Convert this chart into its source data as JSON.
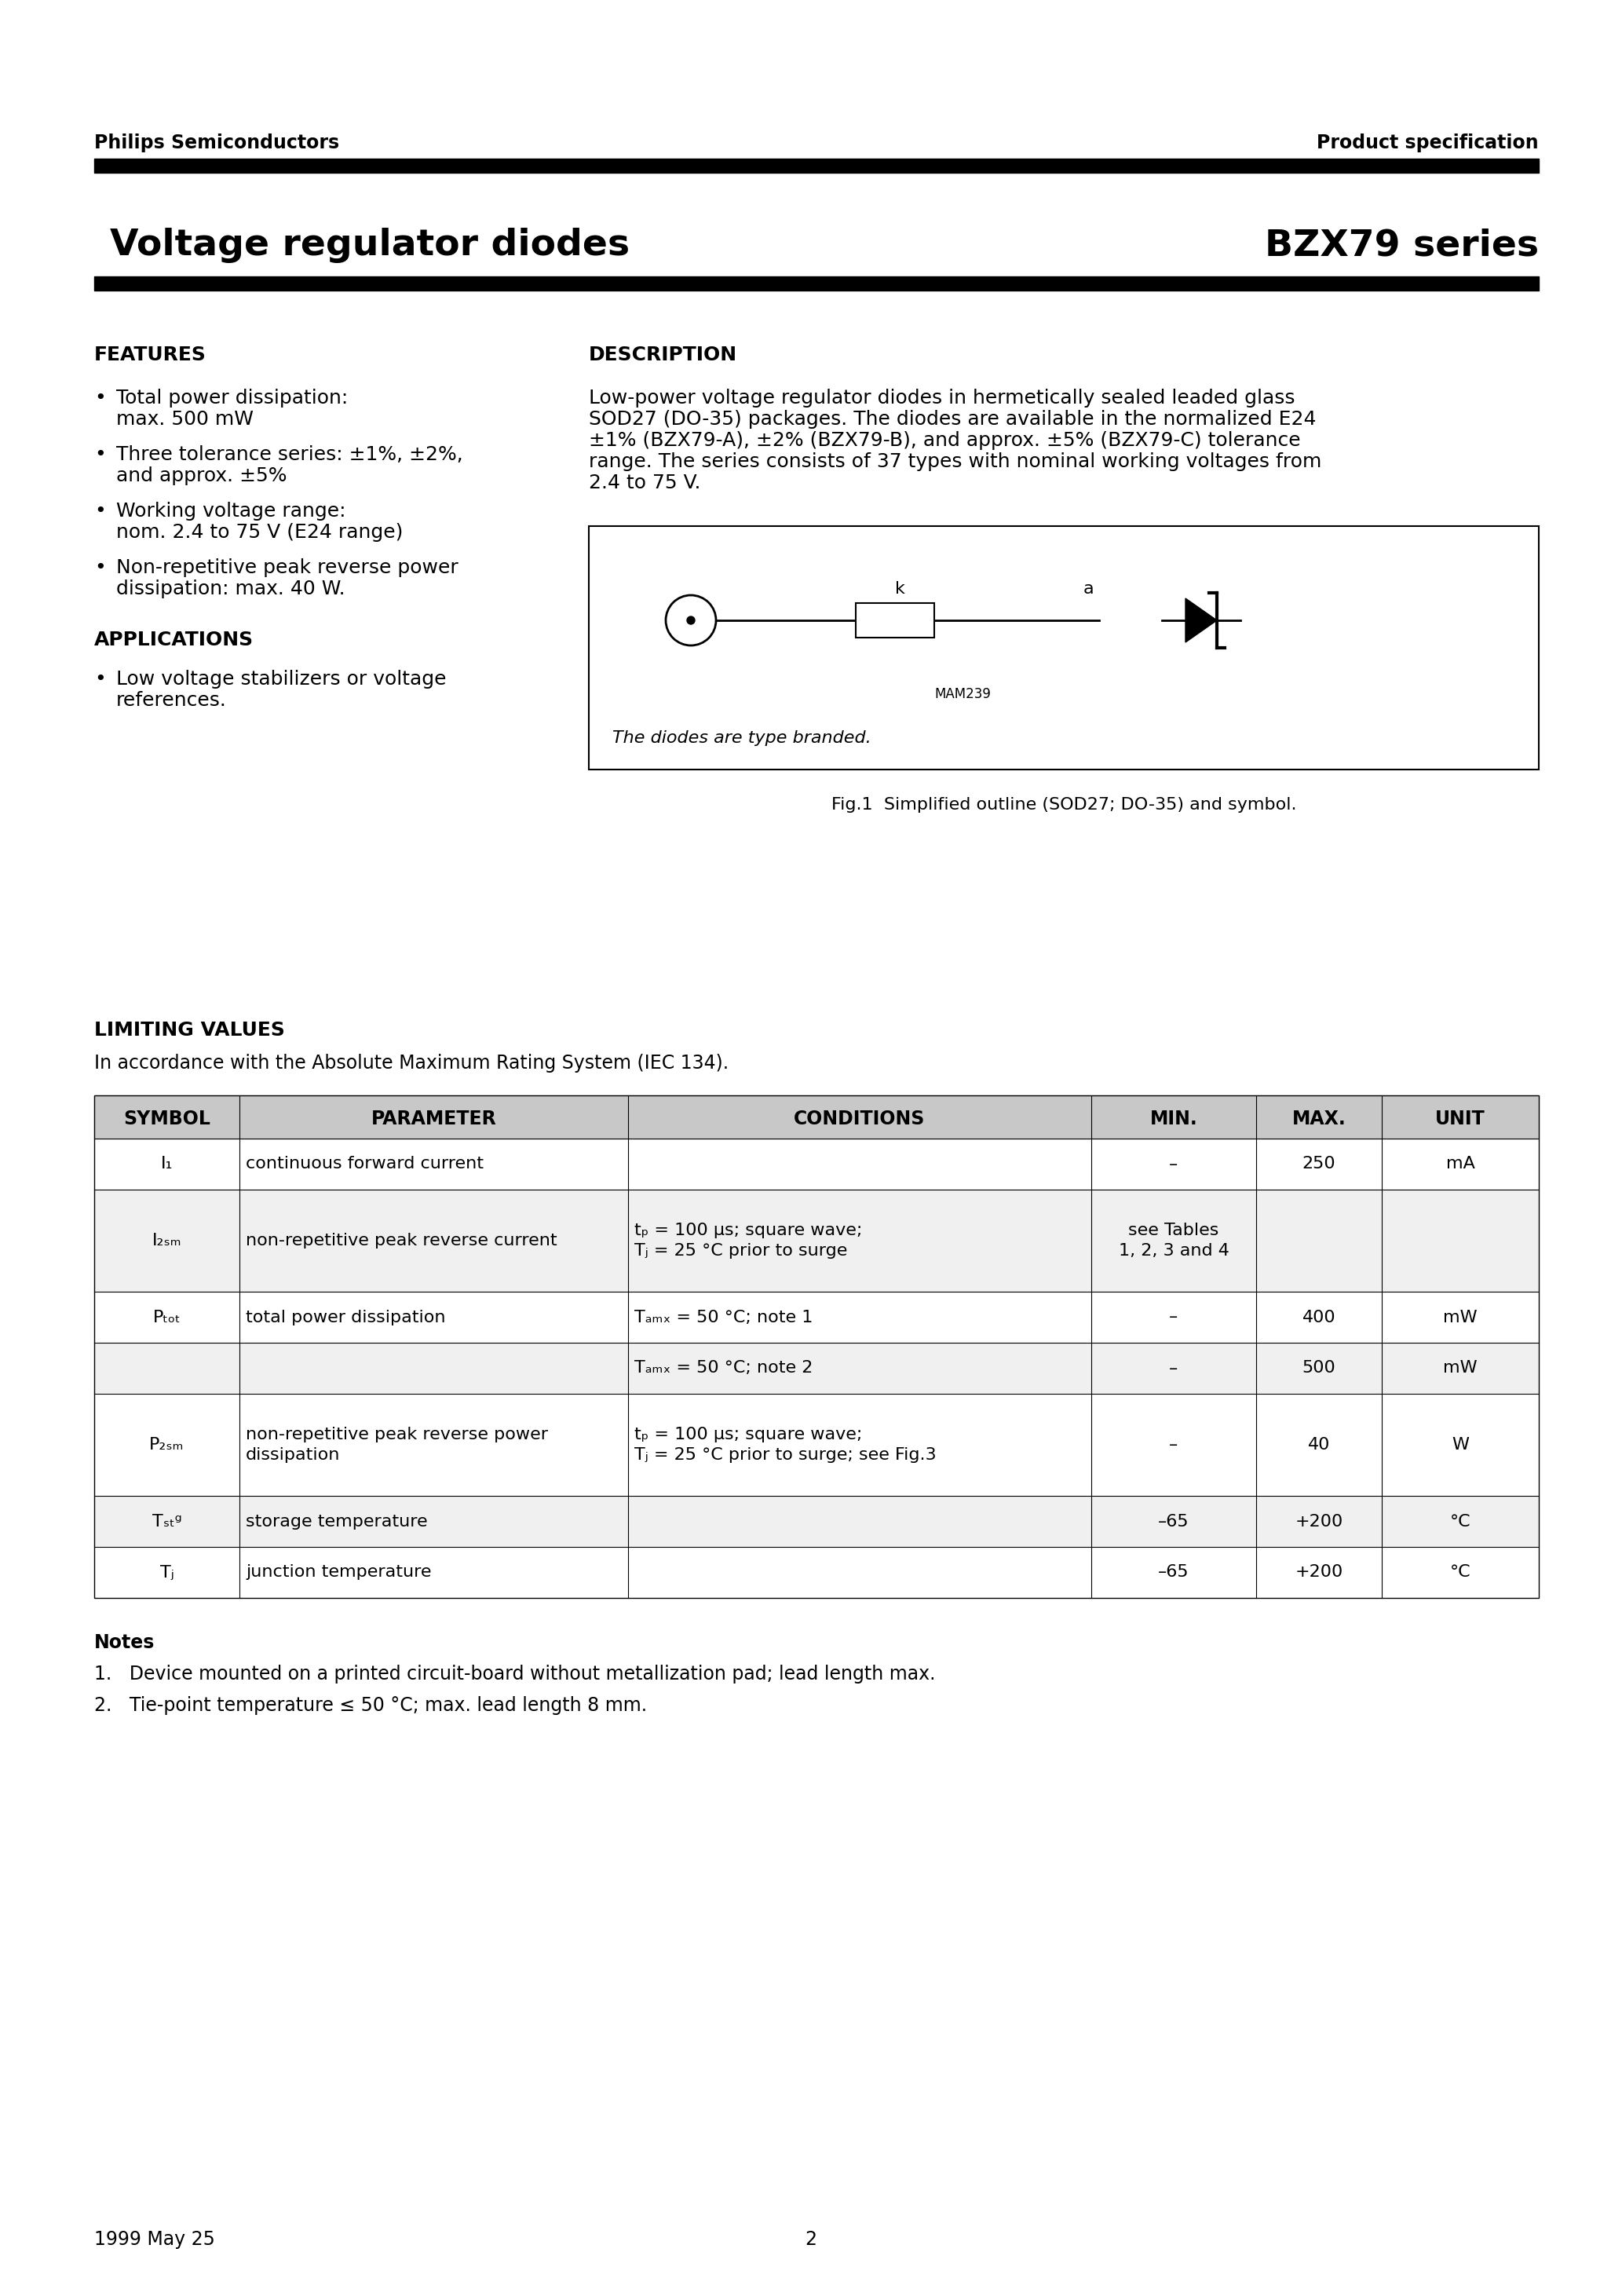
{
  "page_bg": "#ffffff",
  "header_left": "Philips Semiconductors",
  "header_right": "Product specification",
  "title_left": "Voltage regulator diodes",
  "title_right": "BZX79 series",
  "features_title": "FEATURES",
  "features_items": [
    "Total power dissipation:\nmax. 500 mW",
    "Three tolerance series: ±1%, ±2%,\nand approx. ±5%",
    "Working voltage range:\nnom. 2.4 to 75 V (E24 range)",
    "Non-repetitive peak reverse power\ndissipation: max. 40 W."
  ],
  "applications_title": "APPLICATIONS",
  "applications_items": [
    "Low voltage stabilizers or voltage\nreferences."
  ],
  "description_title": "DESCRIPTION",
  "description_text": "Low-power voltage regulator diodes in hermetically sealed leaded glass\nSOD27 (DO-35) packages. The diodes are available in the normalized E24\n±1% (BZX79-A), ±2% (BZX79-B), and approx. ±5% (BZX79-C) tolerance\nrange. The series consists of 37 types with nominal working voltages from\n2.4 to 75 V.",
  "fig_caption": "Fig.1  Simplified outline (SOD27; DO-35) and symbol.",
  "fig_note": "The diodes are type branded.",
  "limiting_title": "LIMITING VALUES",
  "limiting_subtitle": "In accordance with the Absolute Maximum Rating System (IEC 134).",
  "table_headers": [
    "SYMBOL",
    "PARAMETER",
    "CONDITIONS",
    "MIN.",
    "MAX.",
    "UNIT"
  ],
  "table_rows": [
    [
      "I₁",
      "continuous forward current",
      "",
      "–",
      "250",
      "mA"
    ],
    [
      "I₂ₛₘ",
      "non-repetitive peak reverse current",
      "tₚ = 100 μs; square wave;\nTⱼ = 25 °C prior to surge",
      "see Tables\n1, 2, 3 and 4",
      "",
      ""
    ],
    [
      "Pₜₒₜ",
      "total power dissipation",
      "Tₐₘₓ = 50 °C; note 1",
      "–",
      "400",
      "mW"
    ],
    [
      "",
      "",
      "Tₐₘₓ = 50 °C; note 2",
      "–",
      "500",
      "mW"
    ],
    [
      "P₂ₛₘ",
      "non-repetitive peak reverse power\ndissipation",
      "tₚ = 100 μs; square wave;\nTⱼ = 25 °C prior to surge; see Fig.3",
      "–",
      "40",
      "W"
    ],
    [
      "Tₛₜᵍ",
      "storage temperature",
      "",
      "–65",
      "+200",
      "°C"
    ],
    [
      "Tⱼ",
      "junction temperature",
      "",
      "–65",
      "+200",
      "°C"
    ]
  ],
  "notes_title": "Notes",
  "notes": [
    "1.   Device mounted on a printed circuit-board without metallization pad; lead length max.",
    "2.   Tie-point temperature ≤ 50 °C; max. lead length 8 mm."
  ],
  "footer_left": "1999 May 25",
  "footer_center": "2"
}
